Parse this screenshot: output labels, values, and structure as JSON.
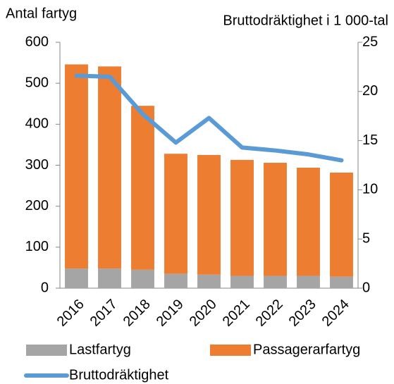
{
  "chart_data": {
    "type": "bar-line",
    "y_label": "Antal fartyg",
    "y2_label": "Bruttodräktighet i 1 000-tal",
    "categories": [
      "2016",
      "2017",
      "2018",
      "2019",
      "2020",
      "2021",
      "2022",
      "2023",
      "2024"
    ],
    "series": [
      {
        "name": "Lastfartyg",
        "color": "#a5a5a5",
        "type": "bar",
        "values": [
          48,
          48,
          45,
          35,
          33,
          30,
          30,
          30,
          28
        ]
      },
      {
        "name": "Passagerarfartyg",
        "color": "#ed7d31",
        "type": "bar",
        "values": [
          498,
          493,
          400,
          293,
          292,
          283,
          276,
          264,
          254
        ]
      },
      {
        "name": "Bruttodräktighet",
        "color": "#5b9bd5",
        "type": "line",
        "axis": "y2",
        "values": [
          21.6,
          21.5,
          17.7,
          14.8,
          17.3,
          14.3,
          14.0,
          13.6,
          13.0
        ]
      }
    ],
    "stacked": true,
    "ylim": [
      0,
      600
    ],
    "yticks": [
      0,
      100,
      200,
      300,
      400,
      500,
      600
    ],
    "y2lim": [
      0,
      25
    ],
    "y2ticks": [
      0,
      5,
      10,
      15,
      20,
      25
    ]
  }
}
